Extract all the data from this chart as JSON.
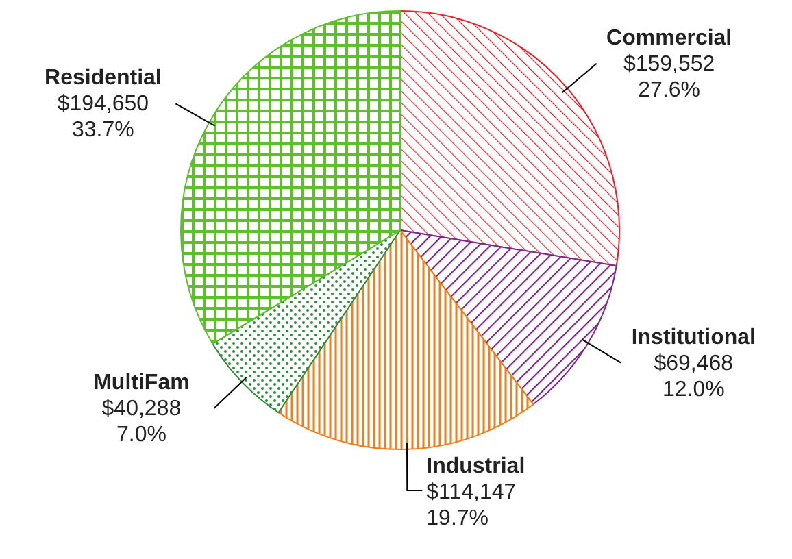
{
  "chart_data": {
    "type": "pie",
    "categories": [
      "Commercial",
      "Institutional",
      "Industrial",
      "MultiFam",
      "Residential"
    ],
    "values": [
      159552,
      69468,
      114147,
      40288,
      194650
    ],
    "colors": [
      "#e8202a",
      "#7b2a8c",
      "#f07f1a",
      "#2e8b3a",
      "#5cc02a"
    ],
    "value_labels": [
      "$159,552\n27.6%",
      "$69,468\n12.0%",
      "$114,147\n19.7%",
      "$40,288\n7.0%",
      "$194,650\n33.7%"
    ]
  }
}
